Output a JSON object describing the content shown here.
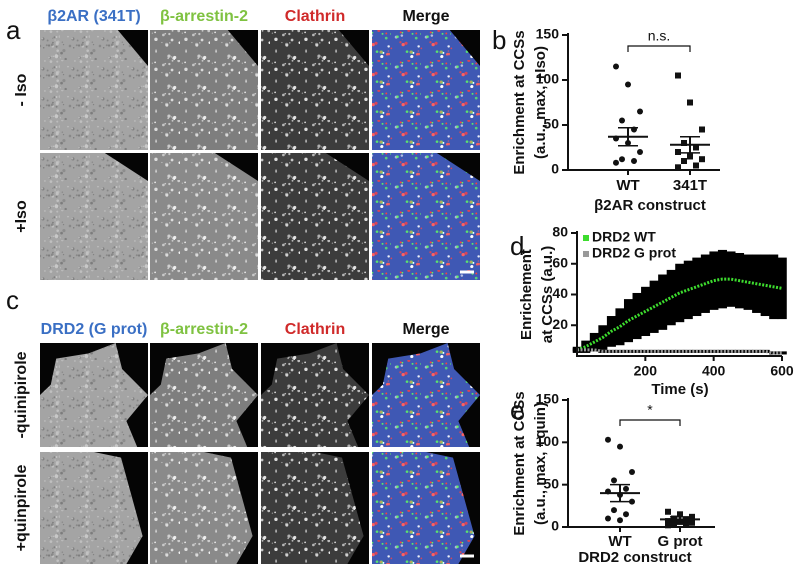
{
  "images": [
    {
      "letter": "a",
      "columns": [
        "β2AR (341T)",
        "β-arrestin-2",
        "Clathrin",
        "Merge"
      ],
      "rows": [
        "- Iso",
        "+Iso"
      ]
    },
    {
      "letter": "c",
      "columns": [
        "DRD2 (G prot)",
        "β-arrestin-2",
        "Clathrin",
        "Merge"
      ],
      "rows": [
        "-quinipirole",
        "+quinpirole"
      ]
    }
  ],
  "chart_data": [
    {
      "type": "dot",
      "panel_label": "b",
      "ylabel": [
        "Enrichment at CCSs",
        "(a.u., max, +Iso)"
      ],
      "xlabel": "β2AR construct",
      "categories": [
        "WT",
        "341T"
      ],
      "markers": [
        "circle",
        "square"
      ],
      "annotation": "n.s.",
      "points": [
        [
          115,
          95,
          65,
          55,
          45,
          35,
          30,
          20,
          12,
          10,
          8
        ],
        [
          105,
          75,
          45,
          30,
          25,
          20,
          15,
          12,
          10,
          5,
          3
        ]
      ],
      "means": [
        37,
        28
      ],
      "errors": [
        10,
        9
      ],
      "ylim": [
        0,
        150
      ],
      "yticks": [
        0,
        50,
        100,
        150
      ]
    },
    {
      "type": "line",
      "panel_label": "d",
      "ylabel": [
        "Enrichement",
        "at CCSs (a.u.)"
      ],
      "xlabel": "Time (s)",
      "legend": "upper left",
      "error_color": "#000000",
      "x": [
        0,
        25,
        50,
        75,
        100,
        125,
        150,
        175,
        200,
        225,
        250,
        275,
        300,
        325,
        350,
        375,
        400,
        425,
        450,
        475,
        500,
        525,
        550,
        575,
        600
      ],
      "series": [
        {
          "name": "DRD2 WT",
          "color": "#3ddc2e",
          "values": [
            4,
            6,
            9,
            12,
            16,
            19,
            23,
            26,
            29,
            32,
            35,
            38,
            41,
            43,
            45,
            47,
            49,
            50,
            50,
            49,
            48,
            47,
            46,
            45,
            44
          ],
          "errors": [
            2,
            4,
            6,
            8,
            10,
            12,
            14,
            15,
            16,
            17,
            18,
            18,
            19,
            19,
            19,
            19,
            19,
            19,
            18,
            18,
            18,
            19,
            20,
            21,
            20
          ]
        },
        {
          "name": "DRD2 G prot",
          "color": "#999999",
          "values": [
            4,
            4,
            4,
            3,
            3,
            3,
            3,
            3,
            3,
            3,
            3,
            3,
            3,
            3,
            3,
            3,
            3,
            3,
            3,
            3,
            3,
            3,
            3,
            2,
            2
          ],
          "errors": [
            1,
            1,
            1,
            1,
            1,
            1,
            1,
            1,
            1,
            1,
            1,
            1,
            1,
            1,
            1,
            1,
            1,
            1,
            1,
            1,
            1,
            1,
            1,
            1,
            1
          ]
        }
      ],
      "xlim": [
        0,
        600
      ],
      "xticks": [
        200,
        400,
        600
      ],
      "ylim": [
        0,
        80
      ],
      "yticks": [
        20,
        40,
        60,
        80
      ]
    },
    {
      "type": "dot",
      "panel_label": "e",
      "ylabel": [
        "Enrichment at CCSs",
        "(a.u., max, +quin)"
      ],
      "xlabel": "DRD2 construct",
      "categories": [
        "WT",
        "G prot"
      ],
      "markers": [
        "circle",
        "square"
      ],
      "annotation": "*",
      "points": [
        [
          103,
          95,
          65,
          55,
          45,
          42,
          38,
          30,
          20,
          15,
          10,
          8
        ],
        [
          18,
          15,
          12,
          10,
          8,
          7,
          6,
          5,
          4,
          3,
          2
        ]
      ],
      "means": [
        40,
        9
      ],
      "errors": [
        10,
        3
      ],
      "ylim": [
        0,
        150
      ],
      "yticks": [
        0,
        50,
        100,
        150
      ]
    }
  ]
}
